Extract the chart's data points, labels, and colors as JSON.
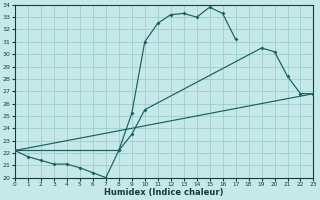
{
  "xlabel": "Humidex (Indice chaleur)",
  "bg_color": "#c5e8e8",
  "grid_color": "#9ecece",
  "line_color": "#1a6060",
  "xlim": [
    0,
    23
  ],
  "ylim": [
    20,
    34
  ],
  "xticks": [
    0,
    1,
    2,
    3,
    4,
    5,
    6,
    7,
    8,
    9,
    10,
    11,
    12,
    13,
    14,
    15,
    16,
    17,
    18,
    19,
    20,
    21,
    22,
    23
  ],
  "yticks": [
    20,
    21,
    22,
    23,
    24,
    25,
    26,
    27,
    28,
    29,
    30,
    31,
    32,
    33,
    34
  ],
  "curve1_x": [
    0,
    1,
    2,
    3,
    4,
    5,
    6,
    7,
    8,
    9,
    10,
    11,
    12,
    13,
    14,
    15,
    16,
    17
  ],
  "curve1_y": [
    22.2,
    21.7,
    21.4,
    21.1,
    21.1,
    20.8,
    20.4,
    20.0,
    22.2,
    25.2,
    31.0,
    32.5,
    33.2,
    33.3,
    33.0,
    33.8,
    33.3,
    31.2
  ],
  "curve2_x": [
    0,
    8,
    9,
    10,
    19,
    20,
    21,
    22,
    23
  ],
  "curve2_y": [
    22.2,
    22.2,
    23.5,
    25.5,
    30.5,
    30.2,
    28.2,
    26.8,
    26.8
  ],
  "curve3_x": [
    0,
    23
  ],
  "curve3_y": [
    22.2,
    26.8
  ]
}
